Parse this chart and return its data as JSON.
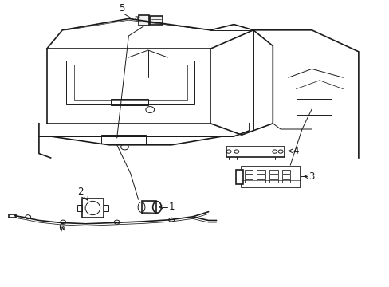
{
  "bg_color": "#ffffff",
  "line_color": "#1a1a1a",
  "line_width": 1.2,
  "thin_line": 0.7
}
